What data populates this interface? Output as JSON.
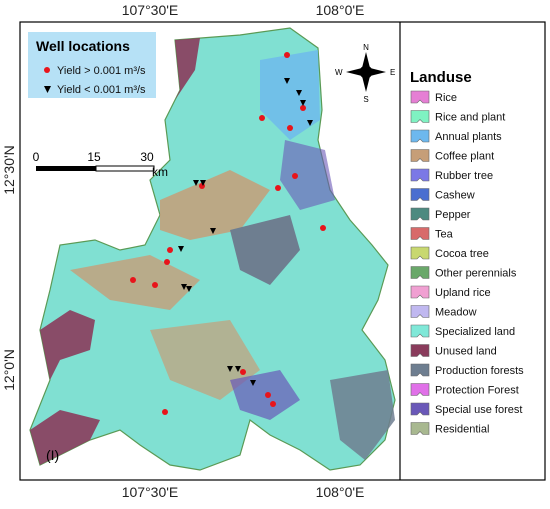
{
  "map": {
    "top_axis": [
      "107°30'E",
      "108°0'E"
    ],
    "bottom_axis": [
      "107°30'E",
      "108°0'E"
    ],
    "left_axis": [
      "12°30'N",
      "12°0'N"
    ],
    "inset_label": "(I)",
    "compass": {
      "n": "N",
      "s": "S",
      "e": "E",
      "w": "W"
    },
    "scale_bar": {
      "ticks": [
        "0",
        "15",
        "30"
      ],
      "unit": "km"
    }
  },
  "well_legend": {
    "title": "Well locations",
    "items": [
      "Yield > 0.001 m³/s",
      "Yield < 0.001 m³/s"
    ]
  },
  "landuse_legend": {
    "title": "Landuse",
    "items": [
      {
        "label": "Rice",
        "color": "#e57fd4"
      },
      {
        "label": "Rice and plant",
        "color": "#7ff2c2"
      },
      {
        "label": "Annual plants",
        "color": "#6db8ee"
      },
      {
        "label": "Coffee plant",
        "color": "#c69e78"
      },
      {
        "label": "Rubber tree",
        "color": "#7b78e6"
      },
      {
        "label": "Cashew",
        "color": "#4a6ed0"
      },
      {
        "label": "Pepper",
        "color": "#4d8a80"
      },
      {
        "label": "Tea",
        "color": "#d86a6a"
      },
      {
        "label": "Cocoa tree",
        "color": "#c8d870"
      },
      {
        "label": "Other perennials",
        "color": "#6aa86a"
      },
      {
        "label": "Upland rice",
        "color": "#f0a0d2"
      },
      {
        "label": "Meadow",
        "color": "#c0b8f0"
      },
      {
        "label": "Specialized land",
        "color": "#80e8d8"
      },
      {
        "label": "Unused land",
        "color": "#8a3c5c"
      },
      {
        "label": "Production forests",
        "color": "#6e7e90"
      },
      {
        "label": "Protection Forest",
        "color": "#e070e8"
      },
      {
        "label": "Special use forest",
        "color": "#6a58b8"
      },
      {
        "label": "Residential",
        "color": "#a8b890"
      }
    ]
  }
}
